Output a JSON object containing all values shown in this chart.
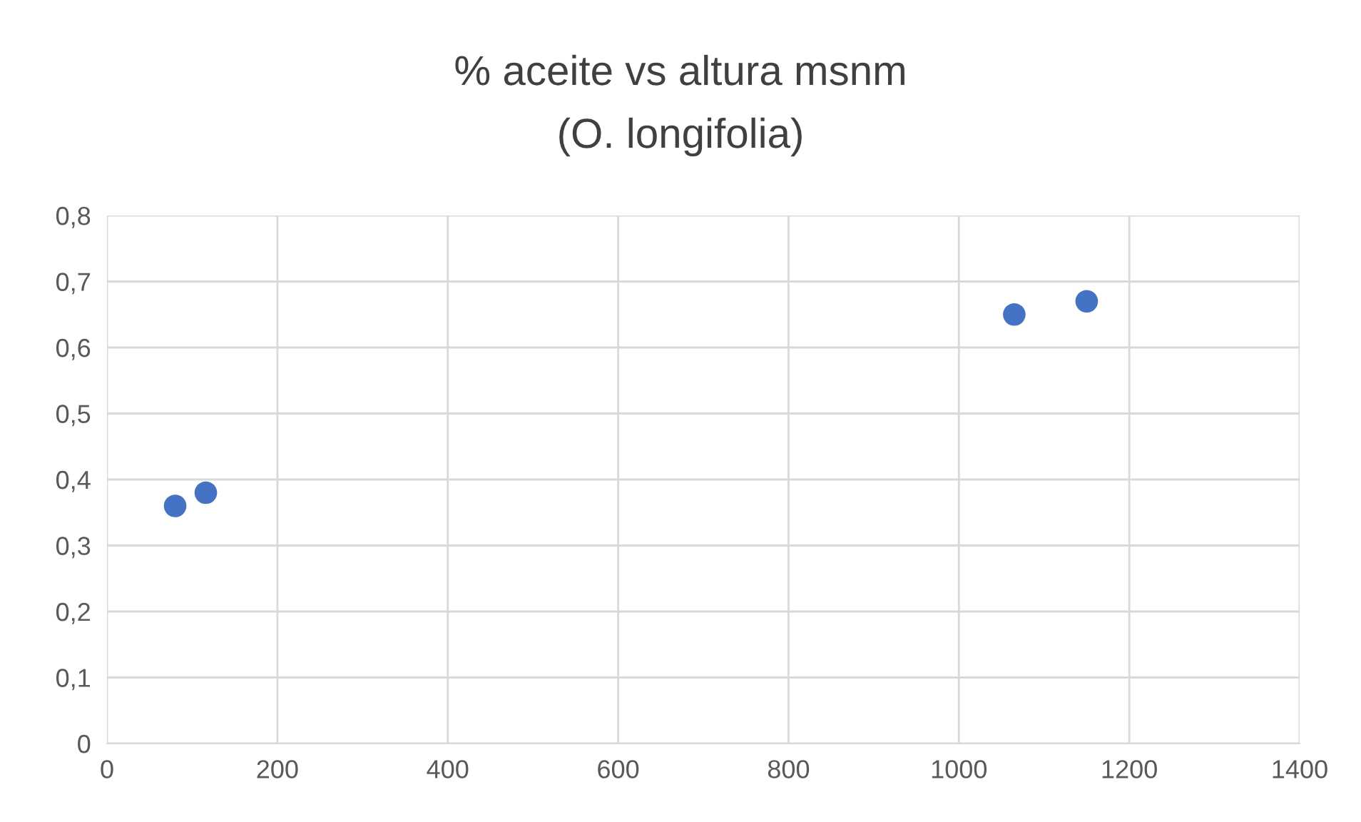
{
  "chart_data": {
    "type": "scatter",
    "title": "% aceite vs altura msnm",
    "subtitle": "(O. longifolia)",
    "x": [
      80,
      116,
      1065,
      1150
    ],
    "series": [
      {
        "color": "#4472c4",
        "values": [
          0.36,
          0.38,
          0.65,
          0.67
        ]
      }
    ],
    "xlim": [
      0,
      1400
    ],
    "xticks": [
      0,
      200,
      400,
      600,
      800,
      1000,
      1200,
      1400
    ],
    "ylim": [
      0,
      0.8
    ],
    "yticks": [
      0,
      {
        "value": 0.1,
        "label": "0,1"
      },
      {
        "value": 0.2,
        "label": "0,2"
      },
      {
        "value": 0.3,
        "label": "0,3"
      },
      {
        "value": 0.4,
        "label": "0,4"
      },
      {
        "value": 0.5,
        "label": "0,5"
      },
      {
        "value": 0.6,
        "label": "0,6"
      },
      {
        "value": 0.7,
        "label": "0,7"
      },
      {
        "value": 0.8,
        "label": "0,8"
      }
    ],
    "grid": true,
    "marker": "circle"
  }
}
